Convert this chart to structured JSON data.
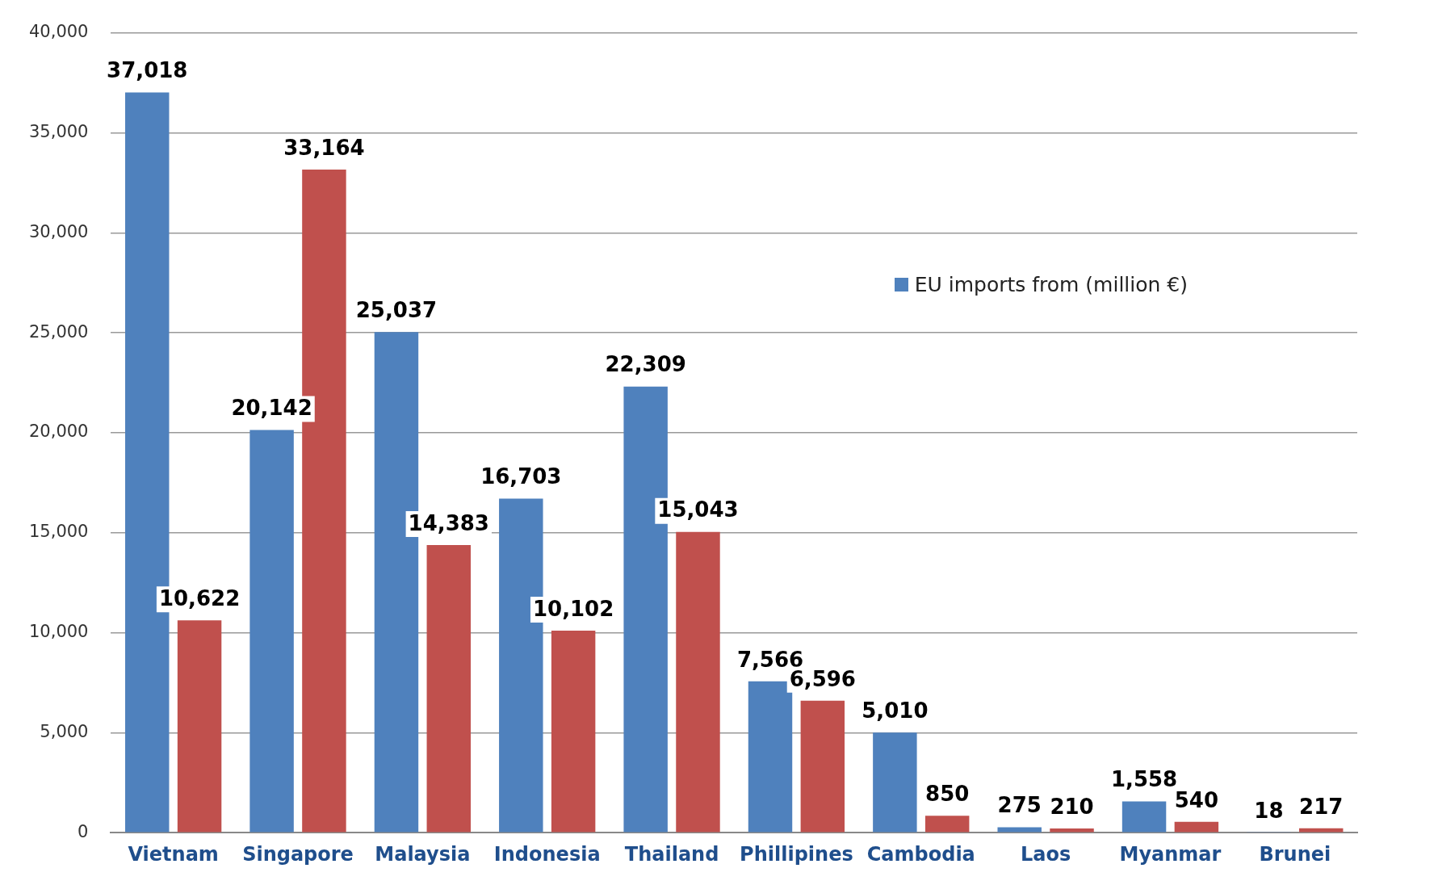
{
  "chart_data": {
    "type": "bar",
    "categories": [
      "Vietnam",
      "Singapore",
      "Malaysia",
      "Indonesia",
      "Thailand",
      "Phillipines",
      "Cambodia",
      "Laos",
      "Myanmar",
      "Brunei"
    ],
    "series": [
      {
        "name": "EU imports from (million €)",
        "color": "#4f81bd",
        "values": [
          37018,
          20142,
          25037,
          16703,
          22309,
          7566,
          5010,
          275,
          1558,
          18
        ],
        "value_labels": [
          "37,018",
          "20,142",
          "25,037",
          "16,703",
          "22,309",
          "7,566",
          "5,010",
          "275",
          "1,558",
          "18"
        ]
      },
      {
        "color": "#c0504d",
        "values": [
          10622,
          33164,
          14383,
          10102,
          15043,
          6596,
          850,
          210,
          540,
          217
        ],
        "value_labels": [
          "10,622",
          "33,164",
          "14,383",
          "10,102",
          "15,043",
          "6,596",
          "850",
          "210",
          "540",
          "217"
        ]
      }
    ],
    "ylim": [
      0,
      40000
    ],
    "yticks": [
      0,
      {
        "value": 5000,
        "label": "5,000"
      },
      {
        "value": 10000,
        "label": "10,000"
      },
      {
        "value": 15000,
        "label": "15,000"
      },
      {
        "value": 20000,
        "label": "20,000"
      },
      {
        "value": 25000,
        "label": "25,000"
      },
      {
        "value": 30000,
        "label": "30,000"
      },
      {
        "value": 35000,
        "label": "35,000"
      },
      {
        "value": 40000,
        "label": "40,000"
      }
    ],
    "grid": "y",
    "legend": "right"
  }
}
